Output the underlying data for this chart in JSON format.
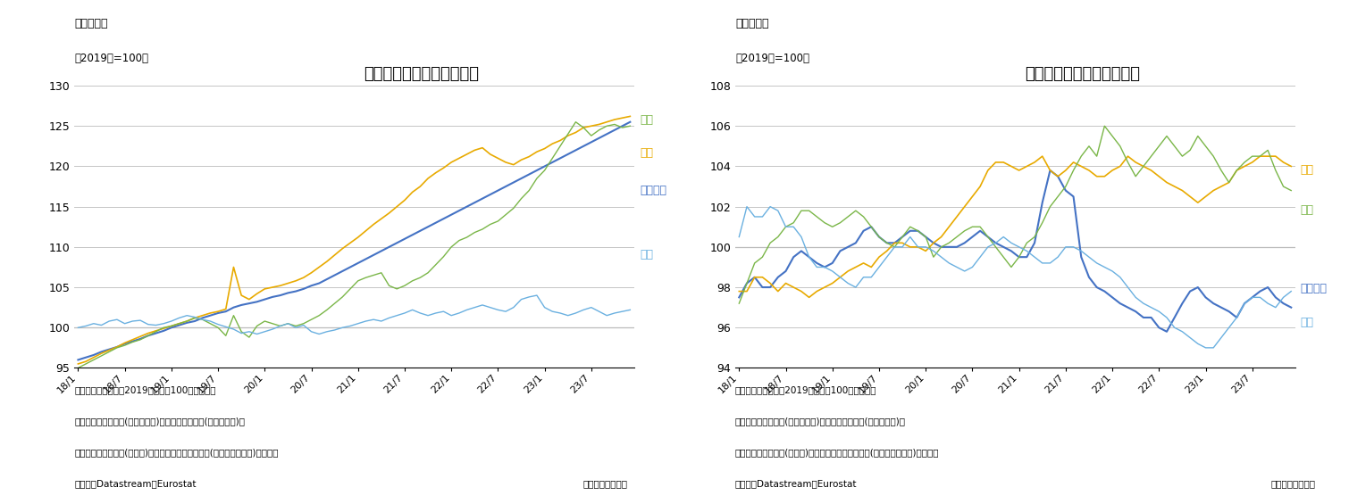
{
  "fig2_title_label": "（図表２）",
  "fig2_ylabel_label": "（2019年=100）",
  "fig2_title": "日米欧の名目賃金水準推移",
  "fig2_ylim": [
    95,
    130
  ],
  "fig2_yticks": [
    95,
    100,
    105,
    110,
    115,
    120,
    125,
    130
  ],
  "fig2_note1": "（注）季節調整値、2019年平均＝100で指数化。",
  "fig2_note2": "　　日本は月あたり(民間雇用者)、米国は週当たり(民間雇用者)、",
  "fig2_note3": "　　英国は週当たり(全産業)、ユーロ圏は時間あたり(農業除く全産業)で四半期",
  "fig2_source_left": "（資料）Datastream、Eurostat",
  "fig2_source_right": "（月次、四半期）",
  "fig3_title_label": "（図表３）",
  "fig3_ylabel_label": "（2019年=100）",
  "fig3_title": "日米欧の実質賃金水準推移",
  "fig3_ylim": [
    94,
    108
  ],
  "fig3_yticks": [
    94,
    96,
    98,
    100,
    102,
    104,
    106,
    108
  ],
  "fig3_note1": "（注）季節調整値、2019年平均＝100で指数化。",
  "fig3_note2": "　　日本は月あたり(民間雇用者)、米国は週当たり(民間雇用者)、",
  "fig3_note3": "　　英国は週当たり(全産業)、ユーロ圏は時間あたり(農業除く全産業)で四半期",
  "fig3_source_left": "（資料）Datastream、Eurostat",
  "fig3_source_right": "（月次、四半期）",
  "color_japan": "#6ab0e0",
  "color_usa": "#e8aa00",
  "color_uk": "#7ab648",
  "color_euro": "#4472c4",
  "xtick_labels": [
    "18/1",
    "18/7",
    "19/1",
    "19/7",
    "20/1",
    "20/7",
    "21/1",
    "21/7",
    "22/1",
    "22/7",
    "23/1",
    "23/7"
  ],
  "tick_positions": [
    0,
    6,
    12,
    18,
    24,
    30,
    36,
    42,
    48,
    54,
    60,
    66
  ],
  "nom_japan": [
    100.0,
    100.2,
    100.5,
    100.3,
    100.8,
    101.0,
    100.5,
    100.8,
    100.9,
    100.4,
    100.3,
    100.5,
    100.8,
    101.2,
    101.5,
    101.3,
    101.0,
    100.8,
    100.4,
    100.1,
    99.8,
    99.3,
    99.5,
    99.2,
    99.5,
    99.8,
    100.2,
    100.5,
    100.0,
    100.3,
    99.5,
    99.2,
    99.5,
    99.7,
    100.0,
    100.2,
    100.5,
    100.8,
    101.0,
    100.8,
    101.2,
    101.5,
    101.8,
    102.2,
    101.8,
    101.5,
    101.8,
    102.0,
    101.5,
    101.8,
    102.2,
    102.5,
    102.8,
    102.5,
    102.2,
    102.0,
    102.5,
    103.5,
    103.8,
    104.0,
    102.5,
    102.0,
    101.8,
    101.5,
    101.8,
    102.2,
    102.5,
    102.0,
    101.5,
    101.8,
    102.0,
    102.2
  ],
  "nom_usa": [
    95.5,
    95.8,
    96.3,
    96.8,
    97.2,
    97.6,
    98.1,
    98.5,
    98.9,
    99.3,
    99.6,
    99.9,
    100.2,
    100.5,
    100.8,
    101.2,
    101.5,
    101.8,
    102.0,
    102.3,
    107.5,
    104.0,
    103.5,
    104.2,
    104.8,
    105.0,
    105.2,
    105.5,
    105.8,
    106.2,
    106.8,
    107.5,
    108.2,
    109.0,
    109.8,
    110.5,
    111.2,
    112.0,
    112.8,
    113.5,
    114.2,
    115.0,
    115.8,
    116.8,
    117.5,
    118.5,
    119.2,
    119.8,
    120.5,
    121.0,
    121.5,
    122.0,
    122.3,
    121.5,
    121.0,
    120.5,
    120.2,
    120.8,
    121.2,
    121.8,
    122.2,
    122.8,
    123.2,
    123.8,
    124.2,
    124.8,
    125.0,
    125.2,
    125.5,
    125.8,
    126.0,
    126.2
  ],
  "nom_uk": [
    95.0,
    95.5,
    96.0,
    96.5,
    97.0,
    97.5,
    97.8,
    98.2,
    98.5,
    99.0,
    99.5,
    100.0,
    100.2,
    100.5,
    100.8,
    101.2,
    101.0,
    100.5,
    100.0,
    99.0,
    101.5,
    99.5,
    98.8,
    100.2,
    100.8,
    100.5,
    100.2,
    100.5,
    100.2,
    100.5,
    101.0,
    101.5,
    102.2,
    103.0,
    103.8,
    104.8,
    105.8,
    106.2,
    106.5,
    106.8,
    105.2,
    104.8,
    105.2,
    105.8,
    106.2,
    106.8,
    107.8,
    108.8,
    110.0,
    110.8,
    111.2,
    111.8,
    112.2,
    112.8,
    113.2,
    114.0,
    114.8,
    116.0,
    117.0,
    118.5,
    119.5,
    121.0,
    122.5,
    124.0,
    125.5,
    124.8,
    123.8,
    124.5,
    125.0,
    125.2,
    124.8,
    125.0
  ],
  "nom_euro": [
    96.0,
    96.3,
    96.6,
    97.0,
    97.3,
    97.6,
    98.0,
    98.3,
    98.6,
    99.0,
    99.3,
    99.6,
    100.0,
    100.3,
    100.6,
    100.8,
    101.2,
    101.5,
    101.8,
    102.0,
    102.5,
    102.8,
    103.0,
    103.2,
    103.5,
    103.8,
    104.0,
    104.3,
    104.5,
    104.8,
    105.2,
    105.5,
    106.0,
    106.5,
    107.0,
    107.5,
    108.0,
    108.5,
    109.0,
    109.5,
    110.0,
    110.5,
    111.0,
    111.5,
    112.0,
    112.5,
    113.0,
    113.5,
    114.0,
    114.5,
    115.0,
    115.5,
    116.0,
    116.5,
    117.0,
    117.5,
    118.0,
    118.5,
    119.0,
    119.5,
    120.0,
    120.5,
    121.0,
    121.5,
    122.0,
    122.5,
    123.0,
    123.5,
    124.0,
    124.5,
    125.0,
    125.5
  ],
  "real_japan": [
    100.5,
    102.0,
    101.5,
    101.5,
    102.0,
    101.8,
    101.0,
    101.0,
    100.5,
    99.5,
    99.0,
    99.0,
    98.8,
    98.5,
    98.2,
    98.0,
    98.5,
    98.5,
    99.0,
    99.5,
    100.0,
    100.0,
    100.5,
    100.0,
    100.0,
    99.8,
    99.5,
    99.2,
    99.0,
    98.8,
    99.0,
    99.5,
    100.0,
    100.2,
    100.5,
    100.2,
    100.0,
    99.8,
    99.5,
    99.2,
    99.2,
    99.5,
    100.0,
    100.0,
    99.8,
    99.5,
    99.2,
    99.0,
    98.8,
    98.5,
    98.0,
    97.5,
    97.2,
    97.0,
    96.8,
    96.5,
    96.0,
    95.8,
    95.5,
    95.2,
    95.0,
    95.0,
    95.5,
    96.0,
    96.5,
    97.2,
    97.5,
    97.5,
    97.2,
    97.0,
    97.5,
    97.8
  ],
  "real_usa": [
    97.8,
    97.8,
    98.5,
    98.5,
    98.2,
    97.8,
    98.2,
    98.0,
    97.8,
    97.5,
    97.8,
    98.0,
    98.2,
    98.5,
    98.8,
    99.0,
    99.2,
    99.0,
    99.5,
    99.8,
    100.2,
    100.2,
    100.0,
    100.0,
    99.8,
    100.2,
    100.5,
    101.0,
    101.5,
    102.0,
    102.5,
    103.0,
    103.8,
    104.2,
    104.2,
    104.0,
    103.8,
    104.0,
    104.2,
    104.5,
    103.8,
    103.5,
    103.8,
    104.2,
    104.0,
    103.8,
    103.5,
    103.5,
    103.8,
    104.0,
    104.5,
    104.2,
    104.0,
    103.8,
    103.5,
    103.2,
    103.0,
    102.8,
    102.5,
    102.2,
    102.5,
    102.8,
    103.0,
    103.2,
    103.8,
    104.0,
    104.2,
    104.5,
    104.5,
    104.5,
    104.2,
    104.0
  ],
  "real_uk": [
    97.2,
    98.2,
    99.2,
    99.5,
    100.2,
    100.5,
    101.0,
    101.2,
    101.8,
    101.8,
    101.5,
    101.2,
    101.0,
    101.2,
    101.5,
    101.8,
    101.5,
    101.0,
    100.5,
    100.2,
    100.0,
    100.5,
    101.0,
    100.8,
    100.5,
    99.5,
    100.0,
    100.2,
    100.5,
    100.8,
    101.0,
    101.0,
    100.5,
    100.0,
    99.5,
    99.0,
    99.5,
    100.2,
    100.5,
    101.2,
    102.0,
    102.5,
    103.0,
    103.8,
    104.5,
    105.0,
    104.5,
    106.0,
    105.5,
    105.0,
    104.2,
    103.5,
    104.0,
    104.5,
    105.0,
    105.5,
    105.0,
    104.5,
    104.8,
    105.5,
    105.0,
    104.5,
    103.8,
    103.2,
    103.8,
    104.2,
    104.5,
    104.5,
    104.8,
    103.8,
    103.0,
    102.8
  ],
  "real_euro": [
    97.5,
    98.2,
    98.5,
    98.0,
    98.0,
    98.5,
    98.8,
    99.5,
    99.8,
    99.5,
    99.2,
    99.0,
    99.2,
    99.8,
    100.0,
    100.2,
    100.8,
    101.0,
    100.5,
    100.2,
    100.2,
    100.5,
    100.8,
    100.8,
    100.5,
    100.2,
    100.0,
    100.0,
    100.0,
    100.2,
    100.5,
    100.8,
    100.5,
    100.2,
    100.0,
    99.8,
    99.5,
    99.5,
    100.2,
    102.2,
    103.8,
    103.5,
    102.8,
    102.5,
    99.5,
    98.5,
    98.0,
    97.8,
    97.5,
    97.2,
    97.0,
    96.8,
    96.5,
    96.5,
    96.0,
    95.8,
    96.5,
    97.2,
    97.8,
    98.0,
    97.5,
    97.2,
    97.0,
    96.8,
    96.5,
    97.2,
    97.5,
    97.8,
    98.0,
    97.5,
    97.2,
    97.0
  ]
}
